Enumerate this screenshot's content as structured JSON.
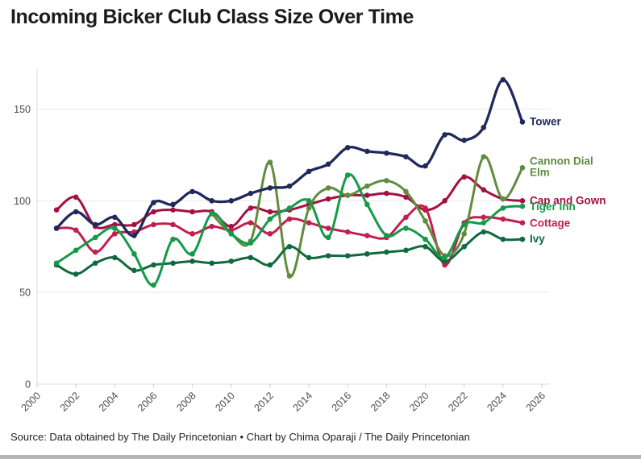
{
  "page": {
    "title": "Incoming Bicker Club Class Size Over Time",
    "source_line": "Source: Data obtained by The Daily Princetonian • Chart by Chima Oparaji / The Daily Princetonian"
  },
  "chart_data": {
    "type": "line",
    "title": "Incoming Bicker Club Class Size Over Time",
    "xlabel": "",
    "ylabel": "",
    "x_axis": {
      "ticks": [
        2000,
        2002,
        2004,
        2006,
        2008,
        2010,
        2012,
        2014,
        2016,
        2018,
        2020,
        2022,
        2024,
        2026
      ],
      "range": [
        2000,
        2026
      ]
    },
    "y_axis": {
      "ticks": [
        0,
        50,
        100,
        150
      ],
      "range": [
        0,
        172
      ],
      "gridlines": true
    },
    "legend_position": "line-end-labels",
    "series": [
      {
        "name": "cap-and-gown",
        "label": "Cap and Gown",
        "label_lines": [
          "Cap and Gown"
        ],
        "color": "#a31141",
        "label_dy": 4,
        "years": [
          2001,
          2002,
          2003,
          2004,
          2005,
          2006,
          2007,
          2008,
          2009,
          2010,
          2011,
          2012,
          2013,
          2014,
          2015,
          2016,
          2017,
          2018,
          2019,
          2020,
          2021,
          2022,
          2023,
          2024,
          2025
        ],
        "values": [
          95,
          102,
          86,
          87,
          87,
          94,
          95,
          94,
          94,
          86,
          96,
          94,
          95,
          98,
          101,
          103,
          103,
          104,
          102,
          95,
          100,
          113,
          106,
          101,
          100
        ]
      },
      {
        "name": "cottage",
        "label": "Cottage",
        "label_lines": [
          "Cottage"
        ],
        "color": "#c21f4e",
        "label_dy": 5,
        "years": [
          2001,
          2002,
          2003,
          2004,
          2005,
          2006,
          2007,
          2008,
          2009,
          2010,
          2011,
          2012,
          2013,
          2014,
          2015,
          2016,
          2017,
          2018,
          2019,
          2020,
          2021,
          2022,
          2023,
          2024,
          2025
        ],
        "values": [
          85,
          84,
          72,
          82,
          83,
          87,
          87,
          82,
          86,
          84,
          88,
          82,
          90,
          88,
          85,
          83,
          81,
          80,
          91,
          96,
          65,
          88,
          91,
          90,
          88
        ]
      },
      {
        "name": "cannon-dial-elm",
        "label": "Cannon Dial Elm",
        "label_lines": [
          "Cannon Dial",
          "Elm"
        ],
        "color": "#5f8c3f",
        "label_dy": -4,
        "years": [
          2009,
          2010,
          2011,
          2012,
          2013,
          2014,
          2015,
          2016,
          2017,
          2018,
          2019,
          2020,
          2021,
          2022,
          2023,
          2024,
          2025
        ],
        "values": [
          93,
          82,
          78,
          121,
          59,
          96,
          107,
          103,
          108,
          111,
          105,
          89,
          70,
          82,
          124,
          101,
          118
        ]
      },
      {
        "name": "ivy",
        "label": "Ivy",
        "label_lines": [
          "Ivy"
        ],
        "color": "#11693f",
        "label_dy": 4,
        "years": [
          2001,
          2002,
          2003,
          2004,
          2005,
          2006,
          2007,
          2008,
          2009,
          2010,
          2011,
          2012,
          2013,
          2014,
          2015,
          2016,
          2017,
          2018,
          2019,
          2020,
          2021,
          2022,
          2023,
          2024,
          2025
        ],
        "values": [
          65,
          60,
          66,
          69,
          62,
          65,
          66,
          67,
          66,
          67,
          69,
          65,
          75,
          69,
          70,
          70,
          71,
          72,
          73,
          75,
          67,
          75,
          83,
          79,
          79
        ]
      },
      {
        "name": "tiger-inn",
        "label": "Tiger Inn",
        "label_lines": [
          "Tiger Inn"
        ],
        "color": "#149a48",
        "label_dy": 5,
        "years": [
          2001,
          2002,
          2003,
          2004,
          2005,
          2006,
          2007,
          2008,
          2009,
          2010,
          2011,
          2012,
          2013,
          2014,
          2015,
          2016,
          2017,
          2018,
          2019,
          2020,
          2021,
          2022,
          2023,
          2024,
          2025
        ],
        "values": [
          66,
          73,
          80,
          85,
          71,
          54,
          79,
          71,
          93,
          82,
          77,
          90,
          96,
          100,
          80,
          114,
          98,
          81,
          85,
          79,
          69,
          87,
          88,
          96,
          97
        ]
      },
      {
        "name": "tower",
        "label": "Tower",
        "label_lines": [
          "Tower"
        ],
        "color": "#20295c",
        "label_dy": 4,
        "years": [
          2001,
          2002,
          2003,
          2004,
          2005,
          2006,
          2007,
          2008,
          2009,
          2010,
          2011,
          2012,
          2013,
          2014,
          2015,
          2016,
          2017,
          2018,
          2019,
          2020,
          2021,
          2022,
          2023,
          2024,
          2025
        ],
        "values": [
          85,
          94,
          87,
          91,
          81,
          99,
          98,
          105,
          100,
          100,
          104,
          107,
          108,
          116,
          120,
          129,
          127,
          126,
          124,
          119,
          136,
          133,
          140,
          166,
          143
        ]
      }
    ]
  },
  "colors": {
    "title_text": "#1b1b1b",
    "axis_text": "#4d4d4d",
    "gridline": "#e9e9e9",
    "source_text": "#222222",
    "background": "#ffffff",
    "bottom_strip": "#b5b5b5"
  }
}
